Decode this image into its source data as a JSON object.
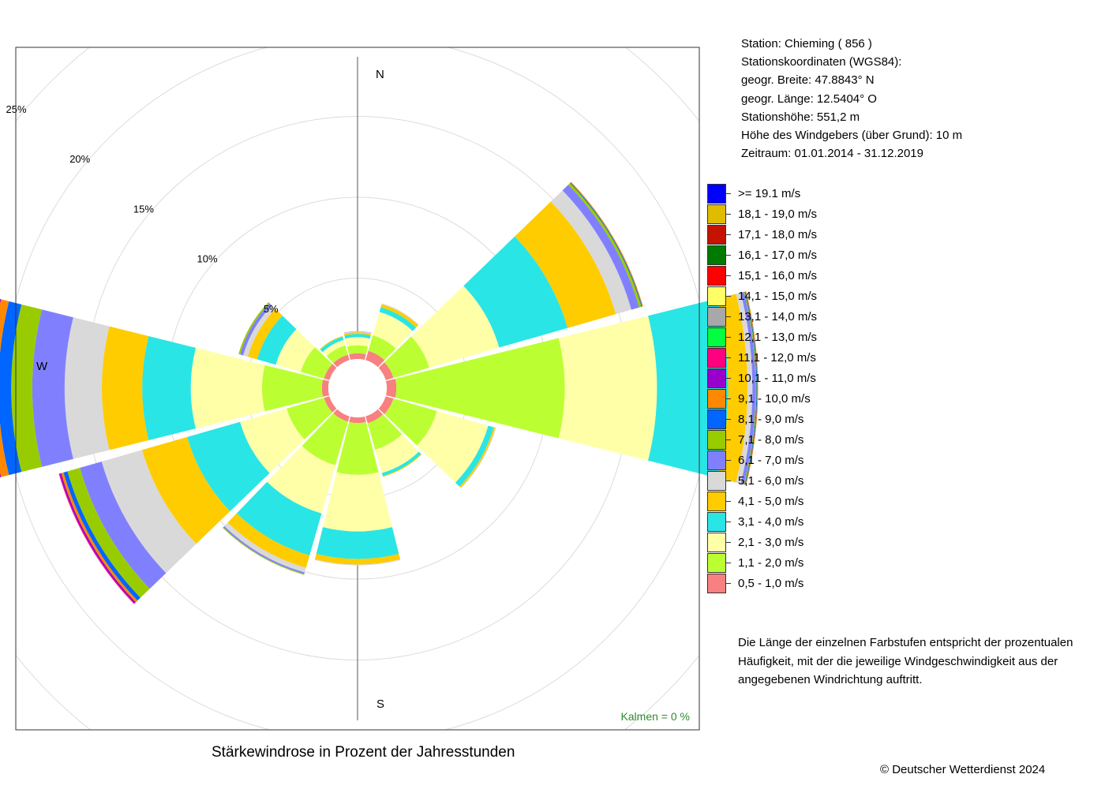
{
  "station": {
    "line1": "Station:  Chieming  ( 856 )",
    "line2": "Stationskoordinaten (WGS84):",
    "line3": "geogr. Breite: 47.8843° N",
    "line4": "geogr. Länge: 12.5404° O",
    "line5": "Stationshöhe: 551,2 m",
    "line6": "Höhe des Windgebers (über Grund): 10 m",
    "line7": "Zeitraum: 01.01.2014 - 31.12.2019"
  },
  "note": {
    "line1": "Die Länge der einzelnen Farbstufen entspricht der prozentualen",
    "line2": "Häufigkeit, mit der die jeweilige Windgeschwindigkeit aus der",
    "line3": "angegebenen Windrichtung auftritt."
  },
  "caption": "Stärkewindrose in Prozent der Jahresstunden",
  "copyright": "© Deutscher Wetterdienst  2024",
  "chart_data": {
    "type": "windrose",
    "ring_labels": [
      "5%",
      "10%",
      "15%",
      "20%",
      "25%"
    ],
    "ring_values": [
      5,
      10,
      15,
      20,
      25
    ],
    "direction_labels": {
      "N": "N",
      "S": "S",
      "W": "W"
    },
    "calm_label": "Kalmen  =  0 %",
    "grid": true,
    "legend_position": "right",
    "speed_classes": [
      {
        "label": ">= 19.1 m/s",
        "color": "#0000ff"
      },
      {
        "label": "18,1 - 19,0 m/s",
        "color": "#e0bc00"
      },
      {
        "label": "17,1 - 18,0 m/s",
        "color": "#c41400"
      },
      {
        "label": "16,1 - 17,0 m/s",
        "color": "#007a00"
      },
      {
        "label": "15,1 - 16,0 m/s",
        "color": "#ff0000"
      },
      {
        "label": "14,1 - 15,0 m/s",
        "color": "#ffff66"
      },
      {
        "label": "13,1 - 14,0 m/s",
        "color": "#a8a8a8"
      },
      {
        "label": "12,1 - 13,0 m/s",
        "color": "#00ff40"
      },
      {
        "label": "11,1 - 12,0 m/s",
        "color": "#ff0080"
      },
      {
        "label": "10,1 - 11,0 m/s",
        "color": "#9900cc"
      },
      {
        "label": "9,1 - 10,0 m/s",
        "color": "#ff8800"
      },
      {
        "label": "8,1 - 9,0 m/s",
        "color": "#0066ff"
      },
      {
        "label": "7,1 - 8,0 m/s",
        "color": "#99cc00"
      },
      {
        "label": "6,1 - 7,0 m/s",
        "color": "#8080ff"
      },
      {
        "label": "5,1 - 6,0 m/s",
        "color": "#d9d9d9"
      },
      {
        "label": "4,1 - 5,0 m/s",
        "color": "#ffcc00"
      },
      {
        "label": "3,1 - 4,0 m/s",
        "color": "#2ae5e5"
      },
      {
        "label": "2,1 - 3,0 m/s",
        "color": "#ffffa8"
      },
      {
        "label": "1,1 - 2,0 m/s",
        "color": "#bbff33"
      },
      {
        "label": "0,5 - 1,0 m/s",
        "color": "#f88080"
      }
    ],
    "sectors": [
      {
        "direction_deg": 0,
        "values": [
          0.35,
          0.5,
          0.5,
          0.2,
          0.1,
          0.05,
          0.02
        ]
      },
      {
        "direction_deg": 30,
        "values": [
          0.6,
          1.0,
          1.5,
          0.3,
          0.2,
          0.05
        ]
      },
      {
        "direction_deg": 60,
        "values": [
          0.5,
          2.3,
          4.5,
          4.4,
          3.1,
          1.0,
          0.5,
          0.15,
          0.05,
          0.05
        ]
      },
      {
        "direction_deg": 90,
        "values": [
          0.6,
          10.4,
          5.7,
          4.4,
          1.2,
          0.3,
          0.2,
          0.05,
          0.05,
          0.05
        ]
      },
      {
        "direction_deg": 120,
        "values": [
          0.5,
          2.8,
          3.3,
          0.35,
          0.1,
          0.05
        ]
      },
      {
        "direction_deg": 150,
        "values": [
          0.45,
          1.7,
          1.5,
          0.2,
          0.05
        ]
      },
      {
        "direction_deg": 180,
        "values": [
          0.35,
          3.2,
          3.5,
          1.7,
          0.35,
          0.05
        ]
      },
      {
        "direction_deg": 210,
        "values": [
          0.35,
          2.8,
          3.1,
          2.7,
          0.8,
          0.3,
          0.1,
          0.05
        ]
      },
      {
        "direction_deg": 240,
        "values": [
          0.35,
          2.4,
          3.0,
          3.4,
          2.9,
          2.6,
          1.4,
          0.8,
          0.25,
          0.15,
          0.1,
          0.05
        ]
      },
      {
        "direction_deg": 270,
        "values": [
          0.4,
          3.7,
          4.4,
          3.0,
          2.5,
          2.3,
          2.0,
          1.3,
          0.8,
          0.5,
          0.3,
          0.2,
          0.1,
          0.1
        ]
      },
      {
        "direction_deg": 300,
        "values": [
          0.35,
          1.5,
          1.6,
          1.2,
          0.6,
          0.3,
          0.2,
          0.1
        ]
      },
      {
        "direction_deg": 330,
        "values": [
          0.35,
          0.6,
          0.35,
          0.2,
          0.05
        ]
      }
    ]
  }
}
